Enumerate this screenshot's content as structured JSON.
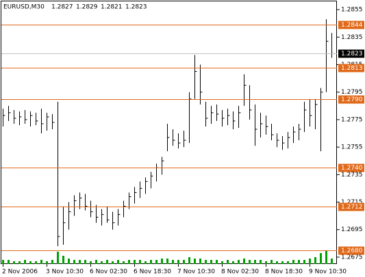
{
  "chart_data": {
    "type": "ohlc",
    "symbol": "EURUSD,M30",
    "header_prices": [
      1.2827,
      1.2829,
      1.2821,
      1.2823
    ],
    "categories": [
      "2 Nov 2006",
      null,
      null,
      null,
      null,
      null,
      null,
      null,
      "3 Nov 10:30",
      null,
      null,
      null,
      null,
      null,
      null,
      null,
      "6 Nov 02:30",
      null,
      null,
      null,
      null,
      null,
      null,
      null,
      "6 Nov 18:30",
      null,
      null,
      null,
      null,
      null,
      null,
      null,
      "7 Nov 10:30",
      null,
      null,
      null,
      null,
      null,
      null,
      null,
      "8 Nov 02:30",
      null,
      null,
      null,
      null,
      null,
      null,
      null,
      "8 Nov 18:30",
      null,
      null,
      null,
      null,
      null,
      null,
      null,
      "9 Nov 10:30",
      null,
      null,
      null,
      null
    ],
    "high": [
      1.2783,
      1.2785,
      1.2782,
      1.2781,
      1.2782,
      1.2781,
      1.278,
      1.2783,
      1.278,
      1.2779,
      1.2788,
      1.2712,
      1.2715,
      1.272,
      1.2722,
      1.2721,
      1.2716,
      1.2713,
      1.271,
      1.2712,
      1.2708,
      1.271,
      1.2716,
      1.2722,
      1.2726,
      1.273,
      1.2733,
      1.2737,
      1.2743,
      1.2748,
      1.2772,
      1.2768,
      1.2765,
      1.2767,
      1.2795,
      1.2822,
      1.2815,
      1.2788,
      1.2785,
      1.2786,
      1.2782,
      1.2783,
      1.2781,
      1.2785,
      1.2808,
      1.28,
      1.2786,
      1.278,
      1.2778,
      1.2772,
      1.2765,
      1.2763,
      1.2766,
      1.277,
      1.2772,
      1.2788,
      1.279,
      1.279,
      1.2798,
      1.2848,
      1.2838
    ],
    "low": [
      1.277,
      1.2774,
      1.2772,
      1.2771,
      1.2772,
      1.277,
      1.2771,
      1.2765,
      1.2767,
      1.2768,
      1.2683,
      1.2684,
      1.2695,
      1.2705,
      1.271,
      1.2709,
      1.2704,
      1.27,
      1.2698,
      1.27,
      1.2695,
      1.2698,
      1.2704,
      1.271,
      1.2714,
      1.2718,
      1.2721,
      1.2725,
      1.273,
      1.2735,
      1.2752,
      1.2756,
      1.2754,
      1.2755,
      1.2758,
      1.279,
      1.2786,
      1.277,
      1.2772,
      1.2774,
      1.277,
      1.2771,
      1.2768,
      1.2769,
      1.2785,
      1.2775,
      1.2756,
      1.2762,
      1.2764,
      1.276,
      1.2755,
      1.2753,
      1.2754,
      1.2758,
      1.276,
      1.2766,
      1.277,
      1.2768,
      1.2752,
      1.2795,
      1.282
    ],
    "close": [
      1.2778,
      1.278,
      1.2776,
      1.2777,
      1.2775,
      1.2778,
      1.2774,
      1.2772,
      1.2777,
      1.2773,
      1.269,
      1.27,
      1.2708,
      1.2716,
      1.2718,
      1.2712,
      1.2708,
      1.2704,
      1.2706,
      1.2702,
      1.27,
      1.2706,
      1.2712,
      1.2719,
      1.2722,
      1.2725,
      1.273,
      1.2734,
      1.274,
      1.2745,
      1.2762,
      1.276,
      1.2758,
      1.276,
      1.279,
      1.281,
      1.2795,
      1.2776,
      1.278,
      1.2779,
      1.2776,
      1.2778,
      1.2774,
      1.278,
      1.28,
      1.2782,
      1.2768,
      1.2772,
      1.277,
      1.2764,
      1.276,
      1.2758,
      1.2762,
      1.2766,
      1.2768,
      1.2782,
      1.2778,
      1.2786,
      1.2795,
      1.2832,
      1.2823
    ],
    "volume": [
      3,
      3,
      2,
      2,
      3,
      2,
      2,
      3,
      2,
      3,
      9,
      6,
      4,
      3,
      3,
      3,
      2,
      3,
      2,
      3,
      2,
      3,
      2,
      3,
      3,
      3,
      2,
      3,
      3,
      4,
      4,
      3,
      3,
      3,
      5,
      4,
      4,
      3,
      3,
      3,
      2,
      3,
      2,
      3,
      4,
      3,
      3,
      3,
      2,
      3,
      2,
      2,
      2,
      3,
      3,
      3,
      4,
      5,
      8,
      10,
      4
    ],
    "levels": [
      1.2844,
      1.2813,
      {
        "value": 1.279,
        "label": "1.2790"
      },
      {
        "value": 1.274,
        "label": "1.2740"
      },
      1.2712,
      {
        "value": 1.268,
        "label": "1.2680"
      }
    ],
    "last": 1.2823,
    "ylim": [
      1.267,
      1.2862
    ],
    "yticks": [
      1.2855,
      1.2835,
      1.2815,
      1.2795,
      1.2775,
      1.2755,
      1.2735,
      1.2715,
      1.2695,
      1.2675
    ],
    "bar_color": "#000000",
    "level_color": "#e0691a",
    "volume_color": "#00a000"
  }
}
